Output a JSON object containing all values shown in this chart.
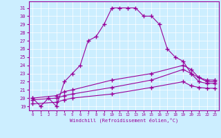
{
  "xlabel": "Windchill (Refroidissement éolien,°C)",
  "bg_color": "#cceeff",
  "line_color": "#990099",
  "xlim": [
    -0.5,
    23.5
  ],
  "ylim": [
    18.5,
    31.8
  ],
  "yticks": [
    19,
    20,
    21,
    22,
    23,
    24,
    25,
    26,
    27,
    28,
    29,
    30,
    31
  ],
  "xticks": [
    0,
    1,
    2,
    3,
    4,
    5,
    6,
    7,
    8,
    9,
    10,
    11,
    12,
    13,
    14,
    15,
    16,
    17,
    18,
    19,
    20,
    21,
    22,
    23
  ],
  "curve1_x": [
    0,
    1,
    2,
    3,
    4,
    5,
    6,
    7,
    8,
    9,
    10,
    11,
    12,
    13,
    14,
    15,
    16,
    17,
    18,
    19,
    20,
    21,
    22,
    23
  ],
  "curve1_y": [
    20.0,
    19.0,
    20.0,
    19.0,
    22.0,
    23.0,
    24.0,
    27.0,
    27.5,
    29.0,
    31.0,
    31.0,
    31.0,
    31.0,
    30.0,
    30.0,
    29.0,
    26.0,
    25.0,
    24.5,
    23.0,
    22.5,
    22.0,
    22.0
  ],
  "curve2_x": [
    0,
    3,
    4,
    5,
    10,
    15,
    19,
    20,
    21,
    22,
    23
  ],
  "curve2_y": [
    20.0,
    20.3,
    20.8,
    21.0,
    22.2,
    23.0,
    24.0,
    23.5,
    22.5,
    22.2,
    22.2
  ],
  "curve3_x": [
    0,
    3,
    4,
    5,
    10,
    15,
    19,
    20,
    21,
    22,
    23
  ],
  "curve3_y": [
    19.8,
    20.0,
    20.3,
    20.5,
    21.3,
    22.2,
    23.5,
    23.0,
    22.0,
    21.8,
    21.8
  ],
  "curve4_x": [
    0,
    3,
    4,
    5,
    10,
    15,
    19,
    20,
    21,
    22,
    23
  ],
  "curve4_y": [
    19.3,
    19.5,
    19.8,
    20.0,
    20.5,
    21.3,
    22.0,
    21.5,
    21.3,
    21.2,
    21.2
  ]
}
